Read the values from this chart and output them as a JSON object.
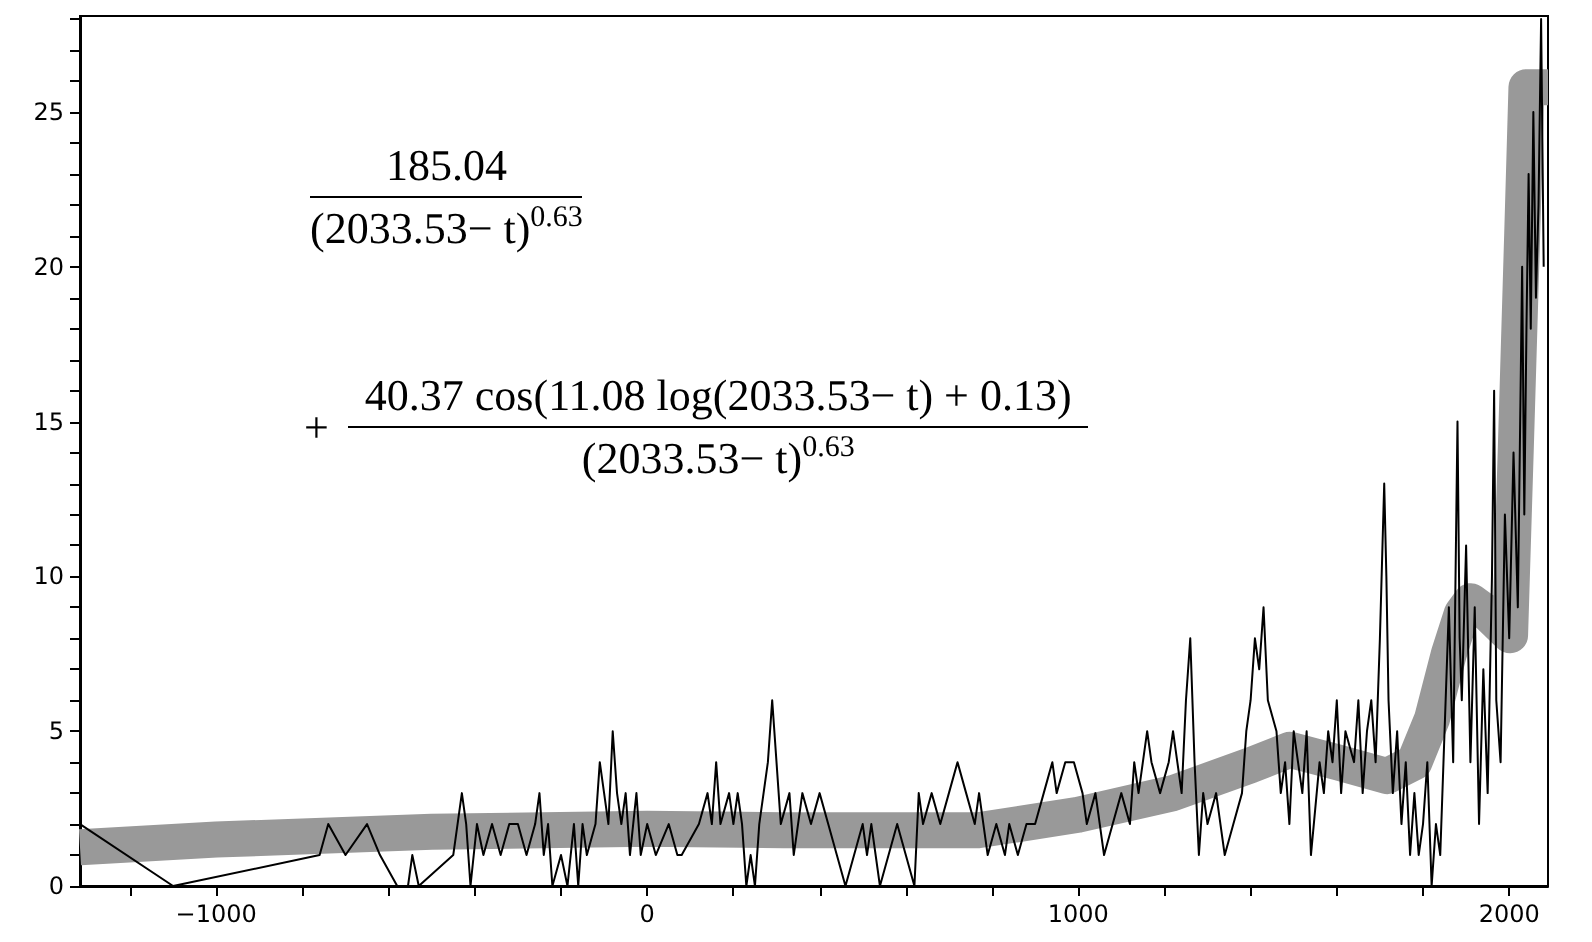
{
  "chart_data": {
    "type": "line",
    "marker": "none",
    "line_style": "solid",
    "grid": false,
    "xlim": [
      -1316,
      2090
    ],
    "ylim": [
      0,
      28.1
    ],
    "xticks": [
      {
        "value": -1200,
        "label": null
      },
      {
        "value": -1000,
        "label": "−1000"
      },
      {
        "value": -800,
        "label": null
      },
      {
        "value": -600,
        "label": null
      },
      {
        "value": -400,
        "label": null
      },
      {
        "value": -200,
        "label": null
      },
      0,
      {
        "value": 200,
        "label": null
      },
      {
        "value": 400,
        "label": null
      },
      {
        "value": 600,
        "label": null
      },
      {
        "value": 800,
        "label": null
      },
      1000,
      {
        "value": 1200,
        "label": null
      },
      {
        "value": 1400,
        "label": null
      },
      {
        "value": 1600,
        "label": null
      },
      {
        "value": 1800,
        "label": null
      },
      2000
    ],
    "yticks": [
      0,
      {
        "value": 1,
        "label": null
      },
      {
        "value": 2,
        "label": null
      },
      {
        "value": 3,
        "label": null
      },
      {
        "value": 4,
        "label": null
      },
      5,
      {
        "value": 6,
        "label": null
      },
      {
        "value": 7,
        "label": null
      },
      {
        "value": 8,
        "label": null
      },
      {
        "value": 9,
        "label": null
      },
      10,
      {
        "value": 11,
        "label": null
      },
      {
        "value": 12,
        "label": null
      },
      {
        "value": 13,
        "label": null
      },
      {
        "value": 14,
        "label": null
      },
      15,
      {
        "value": 16,
        "label": null
      },
      {
        "value": 17,
        "label": null
      },
      {
        "value": 18,
        "label": null
      },
      {
        "value": 19,
        "label": null
      },
      20,
      {
        "value": 21,
        "label": null
      },
      {
        "value": 22,
        "label": null
      },
      {
        "value": 23,
        "label": null
      },
      {
        "value": 24,
        "label": null
      },
      25,
      {
        "value": 26,
        "label": null
      },
      {
        "value": 27,
        "label": null
      },
      {
        "value": 28,
        "label": null
      }
    ],
    "annotations": [
      "185.04",
      "(2033.53− t)$^{0.63}$",
      "+",
      "40.37 cos(11.08 log(2033.53− t) + 0.13)",
      "(2033.53− t)$^{0.63}$"
    ],
    "series": [
      {
        "color": "#999999",
        "x": [
          -1316,
          -1000,
          -500,
          0,
          316,
          500,
          768,
          1000,
          1220,
          1400,
          1491,
          1600,
          1717,
          1780,
          1821,
          1860,
          1890,
          1911,
          1950,
          2002,
          2015,
          2030,
          2040,
          2090
        ],
        "values": [
          1.25,
          1.5,
          1.75,
          1.85,
          1.8,
          1.8,
          1.8,
          2.3,
          3.0,
          3.9,
          4.4,
          4.0,
          3.55,
          4.0,
          5.4,
          7.5,
          8.8,
          9.2,
          8.8,
          8.1,
          14,
          21,
          25.8,
          25.8
        ]
      },
      {
        "color": "#000000",
        "x": [
          -1316,
          -1100,
          -760,
          -740,
          -700,
          -650,
          -620,
          -580,
          -555,
          -545,
          -530,
          -450,
          -440,
          -430,
          -420,
          -410,
          -395,
          -380,
          -360,
          -340,
          -320,
          -300,
          -280,
          -260,
          -250,
          -240,
          -230,
          -220,
          -200,
          -185,
          -170,
          -160,
          -150,
          -140,
          -120,
          -110,
          -100,
          -90,
          -80,
          -70,
          -60,
          -50,
          -40,
          -25,
          -15,
          0,
          20,
          50,
          70,
          80,
          120,
          140,
          150,
          160,
          170,
          190,
          200,
          210,
          220,
          230,
          240,
          250,
          260,
          270,
          280,
          290,
          300,
          310,
          330,
          340,
          360,
          380,
          400,
          420,
          440,
          460,
          480,
          500,
          510,
          520,
          540,
          560,
          580,
          600,
          620,
          630,
          640,
          660,
          680,
          700,
          720,
          740,
          760,
          770,
          790,
          810,
          830,
          840,
          860,
          880,
          900,
          920,
          940,
          950,
          970,
          990,
          1010,
          1020,
          1040,
          1060,
          1080,
          1100,
          1120,
          1130,
          1140,
          1160,
          1170,
          1190,
          1210,
          1220,
          1240,
          1250,
          1260,
          1270,
          1280,
          1290,
          1300,
          1320,
          1340,
          1360,
          1380,
          1390,
          1400,
          1410,
          1420,
          1430,
          1440,
          1460,
          1470,
          1480,
          1490,
          1500,
          1510,
          1520,
          1530,
          1540,
          1560,
          1570,
          1580,
          1590,
          1600,
          1610,
          1620,
          1640,
          1650,
          1660,
          1670,
          1680,
          1690,
          1700,
          1710,
          1715,
          1720,
          1730,
          1740,
          1750,
          1760,
          1770,
          1780,
          1790,
          1800,
          1810,
          1820,
          1830,
          1840,
          1850,
          1860,
          1870,
          1880,
          1885,
          1890,
          1900,
          1910,
          1920,
          1930,
          1940,
          1950,
          1960,
          1965,
          1970,
          1980,
          1990,
          2000,
          2010,
          2020,
          2030,
          2035,
          2040,
          2045,
          2050,
          2056,
          2062,
          2068,
          2074,
          2080
        ],
        "values": [
          2,
          0,
          1,
          2,
          1,
          2,
          1,
          0,
          0,
          1,
          0,
          1,
          2,
          3,
          2,
          0,
          2,
          1,
          2,
          1,
          2,
          2,
          1,
          2,
          3,
          1,
          2,
          0,
          1,
          0,
          2,
          0,
          2,
          1,
          2,
          4,
          3,
          2,
          5,
          3,
          2,
          3,
          1,
          3,
          1,
          2,
          1,
          2,
          1,
          1,
          2,
          3,
          2,
          4,
          2,
          3,
          2,
          3,
          2,
          0,
          1,
          0,
          2,
          3,
          4,
          6,
          4,
          2,
          3,
          1,
          3,
          2,
          3,
          2,
          1,
          0,
          1,
          2,
          1,
          2,
          0,
          1,
          2,
          1,
          0,
          3,
          2,
          3,
          2,
          3,
          4,
          3,
          2,
          3,
          1,
          2,
          1,
          2,
          1,
          2,
          2,
          3,
          4,
          3,
          4,
          4,
          3,
          2,
          3,
          1,
          2,
          3,
          2,
          4,
          3,
          5,
          4,
          3,
          4,
          5,
          3,
          6,
          8,
          4,
          1,
          3,
          2,
          3,
          1,
          2,
          3,
          5,
          6,
          8,
          7,
          9,
          6,
          5,
          3,
          4,
          2,
          5,
          4,
          3,
          5,
          1,
          4,
          3,
          5,
          4,
          6,
          3,
          5,
          4,
          6,
          3,
          5,
          6,
          4,
          8,
          13,
          10,
          6,
          3,
          5,
          2,
          4,
          1,
          3,
          1,
          2,
          4,
          0,
          2,
          1,
          5,
          9,
          4,
          15,
          8,
          6,
          11,
          4,
          9,
          2,
          7,
          3,
          10,
          16,
          6,
          4,
          12,
          8,
          14,
          9,
          20,
          12,
          18,
          23,
          18,
          25,
          19,
          22,
          28,
          20
        ]
      }
    ]
  }
}
